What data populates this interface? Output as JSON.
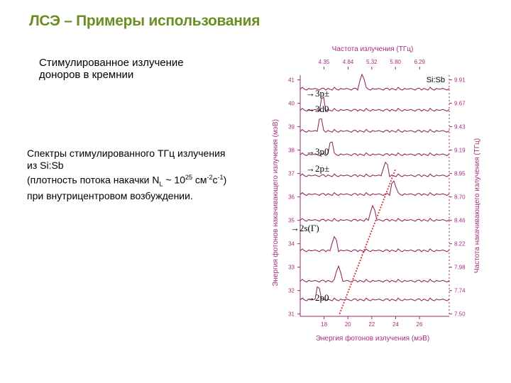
{
  "slide": {
    "title": "ЛСЭ – Примеры использования",
    "subtitle_lines": [
      "Стимулированное излучение",
      "доноров в кремнии"
    ],
    "description": {
      "line1": "Спектры стимулированного ТГц излучения",
      "line2": "из Si:Sb",
      "line3_a": "(плотность потока накачки N",
      "line3_sub": "L",
      "line3_b": " ~ 10",
      "line3_sup1": "25",
      "line3_c": " см",
      "line3_sup2": "-2",
      "line3_d": "с",
      "line3_sup3": "-1",
      "line3_e": ")",
      "line4": "при внутрицентровом возбуждении."
    }
  },
  "chart_data": {
    "type": "line",
    "top_axis_label": "Частота излучения (ТГц)",
    "top_ticks": [
      "4.35",
      "4.84",
      "5.32",
      "5.80",
      "6.29"
    ],
    "sample_label": "Si:Sb",
    "left_axis_label": "Энергия фотонов накачивающего излучения (мэВ)",
    "right_axis_label": "Частота накачивающего излучения (ТГц)",
    "bottom_axis_label": "Энергия фотонов излучения (мэВ)",
    "bottom_ticks": [
      "18",
      "20",
      "22",
      "24",
      "26"
    ],
    "left_ticks": [
      "41",
      "40",
      "39",
      "38",
      "37",
      "36",
      "35",
      "34",
      "33",
      "32",
      "31"
    ],
    "right_ticks": [
      "9.91",
      "9.67",
      "9.43",
      "9.19",
      "8.95",
      "8.70",
      "8.46",
      "8.22",
      "7.98",
      "7.74",
      "7.50"
    ],
    "transition_labels": [
      "→3p±",
      "→3d0",
      "→3p0",
      "→2p±",
      "→2s(Γ)",
      "→2p0"
    ],
    "trace_peaks": [
      {
        "pump": 40.6,
        "peak_x": 21.2
      },
      {
        "pump": 39.7,
        "peak_x": 17.9
      },
      {
        "pump": 38.8,
        "peak_x": 17.7
      },
      {
        "pump": 37.8,
        "peak_x": 18.6
      },
      {
        "pump": 36.9,
        "peak_x": 23.2
      },
      {
        "pump": 36.1,
        "peak_x": 23.8
      },
      {
        "pump": 35.0,
        "peak_x": 22.1
      },
      {
        "pump": 33.7,
        "peak_x": 18.9
      },
      {
        "pump": 32.4,
        "peak_x": 19.2
      },
      {
        "pump": 31.6,
        "peak_x": 17.5
      }
    ],
    "colors": {
      "traces": "#8b1a5a",
      "axes": "#9a2a6a",
      "text": "#a4307a",
      "diagonal": "#cc3333"
    }
  }
}
